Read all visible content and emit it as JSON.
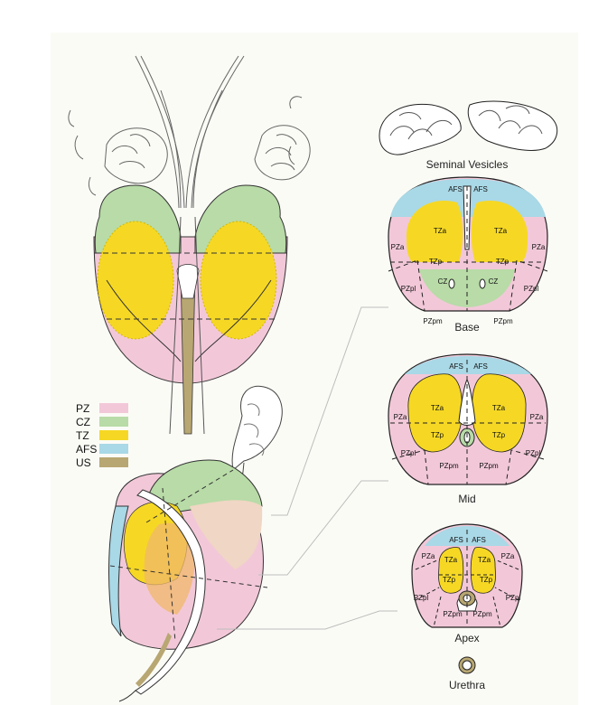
{
  "colors": {
    "PZ": "#f2c8d8",
    "CZ": "#b8dba7",
    "TZ": "#f6d824",
    "AFS": "#a9d8e6",
    "US": "#b8a772",
    "line": "#222222",
    "guide": "#bdbdbd"
  },
  "legend": [
    {
      "label": "PZ",
      "color": "#f2c8d8"
    },
    {
      "label": "CZ",
      "color": "#b8dba7"
    },
    {
      "label": "TZ",
      "color": "#f6d824"
    },
    {
      "label": "AFS",
      "color": "#a9d8e6"
    },
    {
      "label": "US",
      "color": "#b8a772"
    }
  ],
  "captions": {
    "seminal": "Seminal Vesicles",
    "base": "Base",
    "mid": "Mid",
    "apex": "Apex",
    "urethra": "Urethra"
  },
  "base": {
    "afs_l": "AFS",
    "afs_r": "AFS",
    "tza_l": "TZa",
    "tza_r": "TZa",
    "pza_l": "PZa",
    "pza_r": "PZa",
    "tzp_l": "TZp",
    "tzp_r": "TZp",
    "cz_l": "CZ",
    "cz_r": "CZ",
    "pzpl_l": "PZpl",
    "pzpl_r": "PZpl",
    "pzpm_l": "PZpm",
    "pzpm_r": "PZpm"
  },
  "mid": {
    "afs_l": "AFS",
    "afs_r": "AFS",
    "tza_l": "TZa",
    "tza_r": "TZa",
    "pza_l": "PZa",
    "pza_r": "PZa",
    "tzp_l": "TZp",
    "tzp_r": "TZp",
    "pzpl_l": "PZpl",
    "pzpl_r": "PZpl",
    "pzpm_l": "PZpm",
    "pzpm_r": "PZpm"
  },
  "apex": {
    "afs_l": "AFS",
    "afs_r": "AFS",
    "pza_l": "PZa",
    "pza_r": "PZa",
    "tza_l": "TZa",
    "tza_r": "TZa",
    "tzp_l": "TZp",
    "tzp_r": "TZp",
    "pzpl_l": "PZpl",
    "pzpl_r": "PZpl",
    "pzpm_l": "PZpm",
    "pzpm_r": "PZpm"
  }
}
